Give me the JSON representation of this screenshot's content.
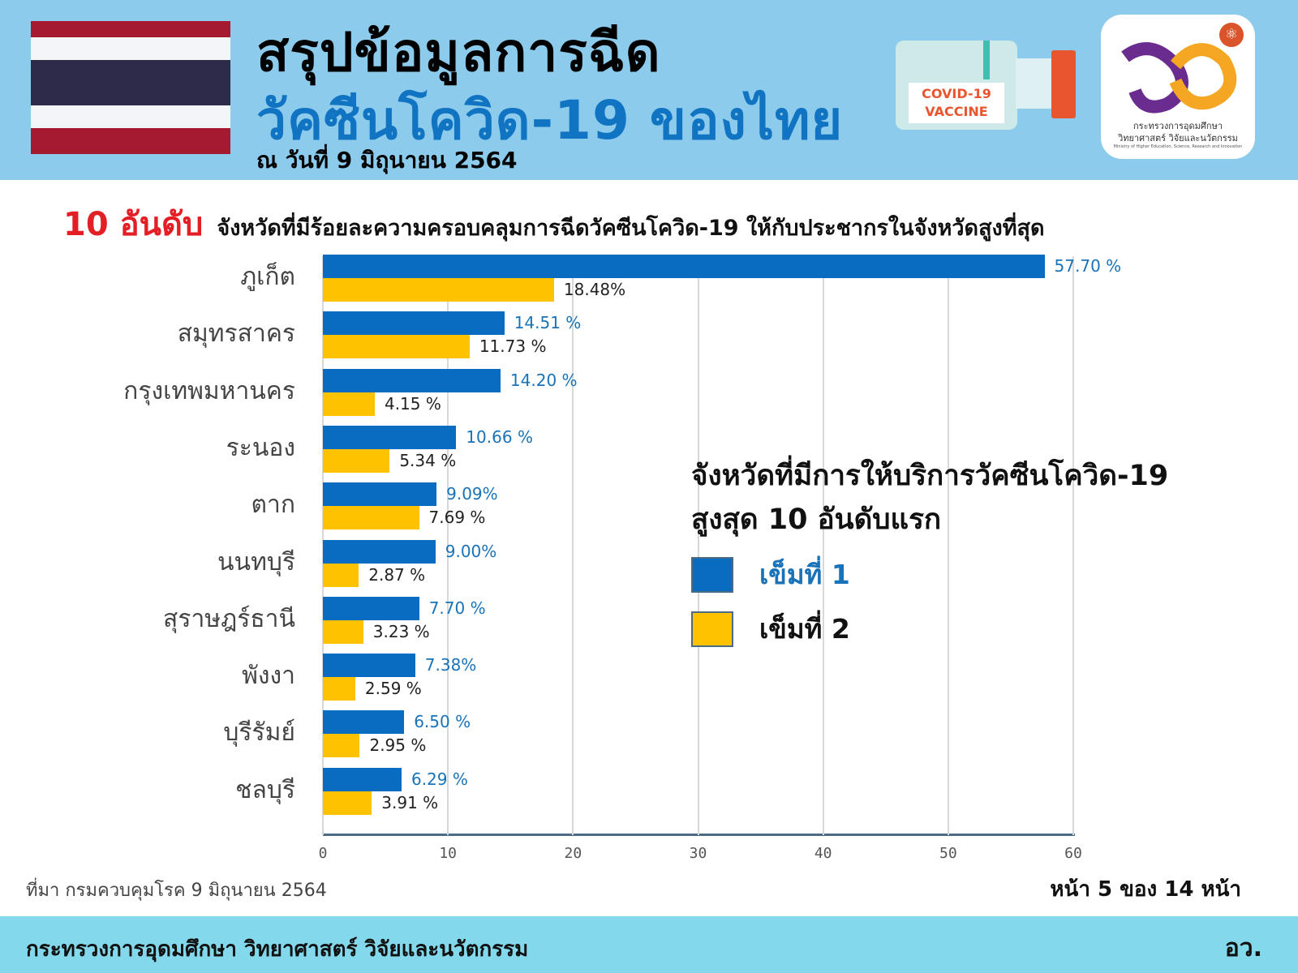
{
  "header": {
    "title_line1": "สรุปข้อมูลการฉีด",
    "title_line2": "วัคซีนโควิด-19 ของไทย",
    "date": "ณ วันที่ 9 มิถุนายน 2564",
    "flag_colors": [
      "#a51931",
      "#f4f5f8",
      "#2d2a4a",
      "#f4f5f8",
      "#a51931"
    ],
    "vial_label_line1": "COVID-19",
    "vial_label_line2": "VACCINE",
    "logo_text_line1": "กระทรวงการอุดมศึกษา",
    "logo_text_line2": "วิทยาศาสตร์ วิจัยและนวัตกรรม",
    "logo_text_line3": "Ministry of Higher Education, Science, Research and Innovation"
  },
  "subtitle": {
    "highlight": "10 อันดับ",
    "text": "จังหวัดที่มีร้อยละความครอบคลุมการฉีดวัคซีนโควิด-19 ให้กับประชากรในจังหวัดสูงที่สุด"
  },
  "legend": {
    "title_line1": "จังหวัดที่มีการให้บริการวัคซีนโควิด-19",
    "title_line2": "สูงสุด 10 อันดับแรก",
    "items": [
      {
        "label": "เข็มที่ 1",
        "color": "#0a6cc0",
        "text_color": "#1a73b8"
      },
      {
        "label": "เข็มที่ 2",
        "color": "#fec200",
        "text_color": "#111111"
      }
    ]
  },
  "chart_data": {
    "type": "bar",
    "orientation": "horizontal",
    "title": "10 อันดับ จังหวัดที่มีร้อยละความครอบคลุมการฉีดวัคซีนโควิด-19 ให้กับประชากรในจังหวัดสูงที่สุด",
    "categories": [
      "ภูเก็ต",
      "สมุทรสาคร",
      "กรุงเทพมหานคร",
      "ระนอง",
      "ตาก",
      "นนทบุรี",
      "สุราษฎร์ธานี",
      "พังงา",
      "บุรีรัมย์",
      "ชลบุรี"
    ],
    "series": [
      {
        "name": "เข็มที่ 1",
        "color": "#0a6cc0",
        "values": [
          57.7,
          14.51,
          14.2,
          10.66,
          9.09,
          9.0,
          7.7,
          7.38,
          6.5,
          6.29
        ],
        "labels": [
          "57.70 %",
          "14.51 %",
          "14.20 %",
          "10.66 %",
          "9.09%",
          "9.00%",
          "7.70 %",
          "7.38%",
          "6.50 %",
          "6.29 %"
        ]
      },
      {
        "name": "เข็มที่ 2",
        "color": "#fec200",
        "values": [
          18.48,
          11.73,
          4.15,
          5.34,
          7.69,
          2.87,
          3.23,
          2.59,
          2.95,
          3.91
        ],
        "labels": [
          "18.48%",
          "11.73 %",
          "4.15 %",
          "5.34 %",
          "7.69 %",
          "2.87 %",
          "3.23 %",
          "2.59 %",
          "2.95 %",
          "3.91 %"
        ]
      }
    ],
    "xlabel": "",
    "ylabel": "",
    "xlim": [
      0,
      60
    ],
    "xticks": [
      "0",
      "10",
      "20",
      "30",
      "40",
      "50",
      "60"
    ],
    "grid": true,
    "legend_position": "right-center"
  },
  "footer": {
    "source": "ที่มา กรมควบคุมโรค 9 มิถุนายน 2564",
    "page": "หน้า 5 ของ 14 หน้า",
    "ministry": "กระทรวงการอุดมศึกษา วิทยาศาสตร์ วิจัยและนวัตกรรม",
    "abbrev": "อว."
  }
}
